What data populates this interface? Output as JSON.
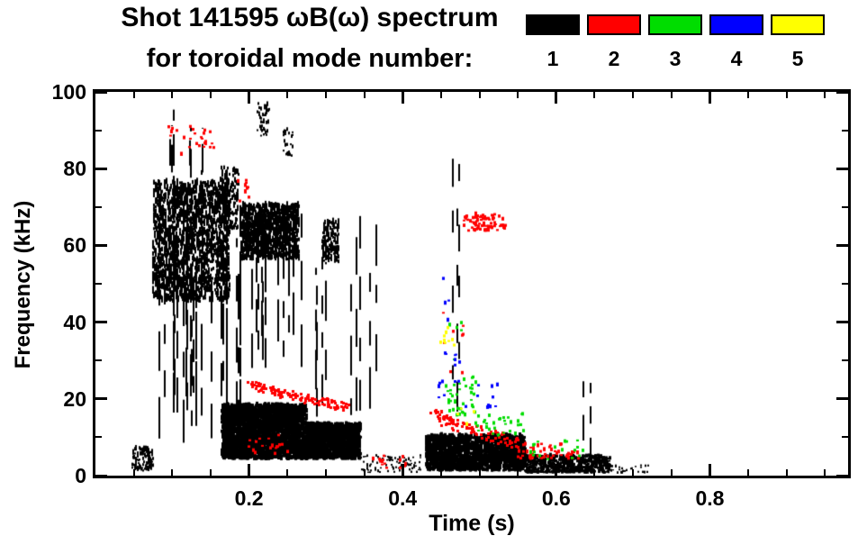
{
  "page": {
    "background": "#ffffff"
  },
  "title": {
    "line1": "Shot 141595 ωB(ω) spectrum",
    "line2": "for toroidal mode number:"
  },
  "legend": {
    "entries": [
      {
        "label": "1",
        "color": "#000000"
      },
      {
        "label": "2",
        "color": "#ff0000"
      },
      {
        "label": "3",
        "color": "#00dd00"
      },
      {
        "label": "4",
        "color": "#0000ff"
      },
      {
        "label": "5",
        "color": "#ffff00"
      }
    ]
  },
  "chart_data": {
    "type": "scatter",
    "title": "Shot 141595 ωB(ω) spectrum for toroidal mode number",
    "xlabel": "Time (s)",
    "ylabel": "Frequency (kHz)",
    "xlim": [
      0,
      0.98
    ],
    "ylim": [
      0,
      100
    ],
    "xticks": [
      {
        "v": 0.2,
        "label": "0.2"
      },
      {
        "v": 0.4,
        "label": "0.4"
      },
      {
        "v": 0.6,
        "label": "0.6"
      },
      {
        "v": 0.8,
        "label": "0.8"
      }
    ],
    "yticks": [
      {
        "v": 0,
        "label": "0"
      },
      {
        "v": 20,
        "label": "20"
      },
      {
        "v": 40,
        "label": "40"
      },
      {
        "v": 60,
        "label": "60"
      },
      {
        "v": 80,
        "label": "80"
      },
      {
        "v": 100,
        "label": "100"
      }
    ],
    "x_minor_step": 0.05,
    "y_minor_step": 10,
    "grid": false,
    "legend_position": "top-right",
    "series": [
      {
        "name": "1",
        "color": "#000000",
        "clusters": [
          {
            "kind": "blob",
            "t": [
              0.048,
              0.075
            ],
            "f": [
              1,
              7
            ],
            "n": 110,
            "w": 2,
            "h": 3
          },
          {
            "kind": "blob",
            "t": [
              0.075,
              0.175
            ],
            "f": [
              45,
              76
            ],
            "n": 1500,
            "w": 2,
            "h": 5
          },
          {
            "kind": "streaks",
            "t": [
              0.08,
              0.19
            ],
            "f": [
              8,
              80
            ],
            "n": 24,
            "w": 2,
            "seg": [
              4,
              13
            ],
            "gap": [
              3,
              9
            ]
          },
          {
            "kind": "streaks",
            "t": [
              0.09,
              0.14
            ],
            "f": [
              76,
              97
            ],
            "n": 6,
            "w": 2,
            "seg": [
              4,
              9
            ],
            "gap": [
              3,
              8
            ]
          },
          {
            "kind": "blob",
            "t": [
              0.162,
              0.186
            ],
            "f": [
              64,
              80
            ],
            "n": 160,
            "w": 2,
            "h": 4
          },
          {
            "kind": "blob",
            "t": [
              0.19,
              0.265
            ],
            "f": [
              56,
              70
            ],
            "n": 950,
            "w": 2,
            "h": 5
          },
          {
            "kind": "streaks",
            "t": [
              0.19,
              0.27
            ],
            "f": [
              28,
              72
            ],
            "n": 12,
            "w": 2,
            "seg": [
              4,
              12
            ],
            "gap": [
              3,
              8
            ]
          },
          {
            "kind": "blob",
            "t": [
              0.21,
              0.226
            ],
            "f": [
              88,
              97
            ],
            "n": 45,
            "w": 2,
            "h": 3
          },
          {
            "kind": "blob",
            "t": [
              0.243,
              0.258
            ],
            "f": [
              83,
              90
            ],
            "n": 25,
            "w": 2,
            "h": 3
          },
          {
            "kind": "blob",
            "t": [
              0.165,
              0.275
            ],
            "f": [
              4,
              18
            ],
            "n": 2600,
            "w": 3,
            "h": 4
          },
          {
            "kind": "blob",
            "t": [
              0.275,
              0.345
            ],
            "f": [
              4,
              13
            ],
            "n": 1300,
            "w": 3,
            "h": 4
          },
          {
            "kind": "streaks",
            "t": [
              0.27,
              0.365
            ],
            "f": [
              15,
              68
            ],
            "n": 9,
            "w": 2,
            "seg": [
              4,
              11
            ],
            "gap": [
              4,
              10
            ]
          },
          {
            "kind": "blob",
            "t": [
              0.295,
              0.317
            ],
            "f": [
              55,
              66
            ],
            "n": 130,
            "w": 2,
            "h": 4
          },
          {
            "kind": "blob",
            "t": [
              0.345,
              0.425
            ],
            "f": [
              0.5,
              5
            ],
            "n": 95,
            "w": 2,
            "h": 2
          },
          {
            "kind": "streaks",
            "t": [
              0.449,
              0.474
            ],
            "f": [
              12,
              95
            ],
            "n": 3,
            "w": 2,
            "seg": [
              3,
              8
            ],
            "gap": [
              6,
              14
            ]
          },
          {
            "kind": "blob",
            "t": [
              0.43,
              0.56
            ],
            "f": [
              1,
              10
            ],
            "n": 1700,
            "w": 3,
            "h": 4
          },
          {
            "kind": "blob",
            "t": [
              0.56,
              0.67
            ],
            "f": [
              0.5,
              5
            ],
            "n": 520,
            "w": 3,
            "h": 3
          },
          {
            "kind": "streaks",
            "t": [
              0.634,
              0.646
            ],
            "f": [
              3,
              30
            ],
            "n": 2,
            "w": 2,
            "seg": [
              3,
              7
            ],
            "gap": [
              3,
              6
            ]
          },
          {
            "kind": "blob",
            "t": [
              0.665,
              0.72
            ],
            "f": [
              0.5,
              2.5
            ],
            "n": 28,
            "w": 2,
            "h": 2
          }
        ]
      },
      {
        "name": "2",
        "color": "#ff0000",
        "clusters": [
          {
            "kind": "trace",
            "pts": [
              [
                0.197,
                24
              ],
              [
                0.24,
                21.5
              ],
              [
                0.285,
                19.5
              ],
              [
                0.335,
                17.5
              ]
            ],
            "n": 120,
            "w": 3,
            "h": 3,
            "jt": 0.004,
            "jf": 1.1
          },
          {
            "kind": "blob",
            "t": [
              0.095,
              0.155
            ],
            "f": [
              83,
              91
            ],
            "n": 26,
            "w": 3,
            "h": 3
          },
          {
            "kind": "blob",
            "t": [
              0.185,
              0.2
            ],
            "f": [
              71,
              77
            ],
            "n": 10,
            "w": 3,
            "h": 3
          },
          {
            "kind": "blob",
            "t": [
              0.48,
              0.535
            ],
            "f": [
              63.5,
              68
            ],
            "n": 75,
            "w": 3,
            "h": 3
          },
          {
            "kind": "trace",
            "pts": [
              [
                0.44,
                16.5
              ],
              [
                0.47,
                13
              ],
              [
                0.505,
                11
              ],
              [
                0.55,
                8.5
              ]
            ],
            "n": 95,
            "w": 3,
            "h": 3,
            "jt": 0.006,
            "jf": 1.5
          },
          {
            "kind": "blob",
            "t": [
              0.55,
              0.63
            ],
            "f": [
              4,
              8
            ],
            "n": 55,
            "w": 3,
            "h": 3
          },
          {
            "kind": "blob",
            "t": [
              0.36,
              0.405
            ],
            "f": [
              1,
              5
            ],
            "n": 14,
            "w": 3,
            "h": 3
          },
          {
            "kind": "blob",
            "t": [
              0.2,
              0.26
            ],
            "f": [
              5,
              11
            ],
            "n": 18,
            "w": 3,
            "h": 3
          },
          {
            "kind": "blob",
            "t": [
              0.45,
              0.48
            ],
            "f": [
              25,
              45
            ],
            "n": 8,
            "w": 3,
            "h": 3
          }
        ]
      },
      {
        "name": "3",
        "color": "#00dd00",
        "clusters": [
          {
            "kind": "blob",
            "t": [
              0.455,
              0.495
            ],
            "f": [
              15,
              26
            ],
            "n": 38,
            "w": 3,
            "h": 3
          },
          {
            "kind": "blob",
            "t": [
              0.495,
              0.56
            ],
            "f": [
              10,
              16
            ],
            "n": 30,
            "w": 3,
            "h": 3
          },
          {
            "kind": "blob",
            "t": [
              0.56,
              0.64
            ],
            "f": [
              4,
              9
            ],
            "n": 18,
            "w": 3,
            "h": 3
          },
          {
            "kind": "blob",
            "t": [
              0.46,
              0.478
            ],
            "f": [
              30,
              40
            ],
            "n": 5,
            "w": 3,
            "h": 3
          }
        ]
      },
      {
        "name": "4",
        "color": "#0000ff",
        "clusters": [
          {
            "kind": "blob",
            "t": [
              0.445,
              0.475
            ],
            "f": [
              20,
              32
            ],
            "n": 14,
            "w": 3,
            "h": 3
          },
          {
            "kind": "blob",
            "t": [
              0.48,
              0.525
            ],
            "f": [
              17,
              24
            ],
            "n": 10,
            "w": 3,
            "h": 3
          },
          {
            "kind": "blob",
            "t": [
              0.452,
              0.462
            ],
            "f": [
              40,
              52
            ],
            "n": 4,
            "w": 3,
            "h": 3
          }
        ]
      },
      {
        "name": "5",
        "color": "#ffff00",
        "clusters": [
          {
            "kind": "blob",
            "t": [
              0.447,
              0.468
            ],
            "f": [
              33,
              40
            ],
            "n": 9,
            "w": 3,
            "h": 3
          },
          {
            "kind": "blob",
            "t": [
              0.47,
              0.5
            ],
            "f": [
              12,
              18
            ],
            "n": 5,
            "w": 3,
            "h": 3
          }
        ]
      }
    ]
  }
}
